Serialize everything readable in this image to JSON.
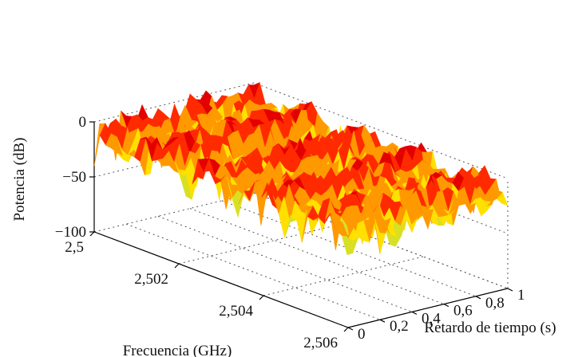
{
  "chart_data": {
    "type": "surface3d",
    "title": "",
    "xlabel": "Frecuencia (GHz)",
    "ylabel": "Retardo de tiempo (s)",
    "zlabel": "Potencia (dB)",
    "xlim": [
      2.5,
      2.506
    ],
    "ylim": [
      0,
      1
    ],
    "zlim": [
      -100,
      0
    ],
    "x_ticks": [
      "2,5",
      "2,502",
      "2,504",
      "2,506"
    ],
    "y_ticks": [
      "0",
      "0,2",
      "0,4",
      "0,6",
      "0,8",
      "1"
    ],
    "z_ticks": [
      "0",
      "−50",
      "−100"
    ],
    "grid": true,
    "colormap": [
      "#2aa4c8",
      "#d8e024",
      "#ffe000",
      "#ff9900",
      "#ff2a00",
      "#e30000",
      "#a01000"
    ],
    "surface_level_range_db": [
      -40,
      10
    ],
    "ridge_count_along_frequency": 5
  }
}
